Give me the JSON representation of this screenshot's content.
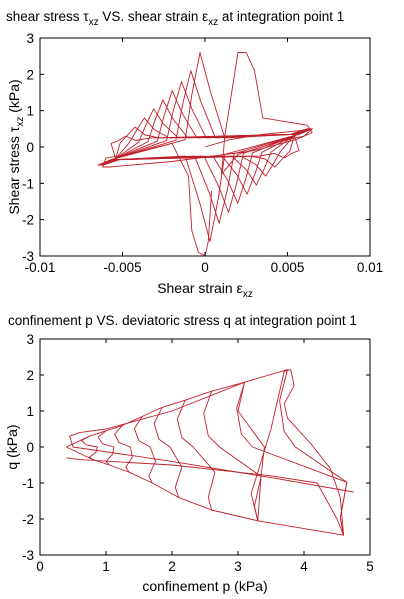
{
  "chart_data": [
    {
      "type": "line",
      "title": "shear stress τxz VS. shear strain εxz at integration point 1",
      "title_parts": {
        "pre": "shear stress τ",
        "sub1": "xz",
        "mid": " VS. shear strain ε",
        "sub2": "xz",
        "post": " at integration point 1"
      },
      "xlabel": "Shear strain εxz",
      "xlabel_parts": {
        "pre": "Shear strain ε",
        "sub": "xz"
      },
      "ylabel": "Shear stress τxz (kPa)",
      "ylabel_parts": {
        "pre": "Shear stress τ",
        "sub": "xz",
        "post": " (kPa)"
      },
      "xlim": [
        -0.01,
        0.01
      ],
      "ylim": [
        -3,
        3
      ],
      "xticks": [
        -0.01,
        -0.005,
        0,
        0.005,
        0.01
      ],
      "xtick_labels": [
        "-0.01",
        "-0.005",
        "0",
        "0.005",
        "0.01"
      ],
      "yticks": [
        -3,
        -2,
        -1,
        0,
        1,
        2,
        3
      ],
      "ytick_labels": [
        "-3",
        "-2",
        "-1",
        "0",
        "1",
        "2",
        "3"
      ],
      "grid": false,
      "line_color": "#c0202a",
      "loop_amplitudes": [
        0.3,
        0.55,
        0.8,
        1.05,
        1.3,
        1.55,
        1.8,
        2.1,
        2.6
      ],
      "loop_strain_limits": [
        0.0062,
        0.0065
      ],
      "series": [
        {
          "values": [
            [
              0,
              0
            ],
            [
              0.0015,
              0.2
            ],
            [
              0.0035,
              0.35
            ],
            [
              0.0058,
              0.45
            ],
            [
              0.0065,
              0.5
            ],
            [
              0.006,
              0.3
            ],
            [
              0.0045,
              0.15
            ],
            [
              0.002,
              -0.2
            ],
            [
              0.001,
              -0.75
            ],
            [
              0.0012,
              0.3
            ],
            [
              0.002,
              2.6
            ],
            [
              0.0025,
              2.6
            ],
            [
              0.0028,
              2.3
            ],
            [
              0.003,
              2.1
            ],
            [
              0.0035,
              0.8
            ],
            [
              0.0062,
              0.6
            ],
            [
              0.0065,
              0.4
            ],
            [
              0.0055,
              0.2
            ],
            [
              0.003,
              -0.1
            ],
            [
              -0.002,
              -0.4
            ],
            [
              -0.0058,
              -0.55
            ],
            [
              -0.0062,
              -0.55
            ],
            [
              -0.006,
              -0.3
            ],
            [
              -0.0045,
              -0.2
            ],
            [
              -0.002,
              0.1
            ],
            [
              -0.001,
              -0.8
            ],
            [
              -0.0008,
              -2.3
            ],
            [
              -0.0006,
              -2.6
            ],
            [
              -0.0004,
              -2.9
            ],
            [
              0.0,
              -3.0
            ],
            [
              0.0002,
              -2.6
            ],
            [
              0.0004,
              -1.2
            ]
          ]
        }
      ]
    },
    {
      "type": "line",
      "title": "confinement p VS. deviatoric stress q at integration point 1",
      "xlabel": "confinement p (kPa)",
      "ylabel": "q (kPa)",
      "xlim": [
        0,
        5
      ],
      "ylim": [
        -3,
        3
      ],
      "xticks": [
        0,
        1,
        2,
        3,
        4,
        5
      ],
      "xtick_labels": [
        "0",
        "1",
        "2",
        "3",
        "4",
        "5"
      ],
      "yticks": [
        -3,
        -2,
        -1,
        0,
        1,
        2,
        3
      ],
      "ytick_labels": [
        "-3",
        "-2",
        "-1",
        "0",
        "1",
        "2",
        "3"
      ],
      "grid": false,
      "line_color": "#c0202a",
      "loop_peaks": [
        {
          "p": 0.75,
          "q": 0.3
        },
        {
          "p": 1.0,
          "q": 0.45
        },
        {
          "p": 1.25,
          "q": 0.6
        },
        {
          "p": 1.55,
          "q": 0.85
        },
        {
          "p": 1.85,
          "q": 1.1
        },
        {
          "p": 2.2,
          "q": 1.3
        },
        {
          "p": 2.6,
          "q": 1.55
        },
        {
          "p": 3.1,
          "q": 1.8
        },
        {
          "p": 3.75,
          "q": 2.15
        }
      ],
      "loop_troughs": [
        {
          "p": 0.8,
          "q": -0.35
        },
        {
          "p": 1.05,
          "q": -0.5
        },
        {
          "p": 1.35,
          "q": -0.7
        },
        {
          "p": 1.7,
          "q": -1.0
        },
        {
          "p": 2.1,
          "q": -1.4
        },
        {
          "p": 2.6,
          "q": -1.75
        },
        {
          "p": 3.3,
          "q": -2.05
        },
        {
          "p": 4.6,
          "q": -2.45
        }
      ],
      "series": [
        {
          "values": [
            [
              0.5,
              0.0
            ],
            [
              0.45,
              0.3
            ],
            [
              0.6,
              0.4
            ],
            [
              1.0,
              0.5
            ],
            [
              2.0,
              1.0
            ],
            [
              3.1,
              1.8
            ],
            [
              3.05,
              1.4
            ],
            [
              3.0,
              1.0
            ],
            [
              3.2,
              0.5
            ],
            [
              3.4,
              0.0
            ],
            [
              3.35,
              -0.8
            ],
            [
              3.3,
              -2.05
            ],
            [
              3.2,
              -1.3
            ],
            [
              3.5,
              0.5
            ],
            [
              3.7,
              2.1
            ],
            [
              3.8,
              2.15
            ],
            [
              3.85,
              1.7
            ],
            [
              3.7,
              1.2
            ],
            [
              3.75,
              0.8
            ],
            [
              4.1,
              0.1
            ],
            [
              4.4,
              -0.6
            ],
            [
              4.55,
              -1.4
            ],
            [
              4.6,
              -2.45
            ],
            [
              4.5,
              -2.0
            ],
            [
              4.2,
              -1.0
            ],
            [
              3.5,
              -0.8
            ],
            [
              2.0,
              -0.5
            ],
            [
              0.6,
              -0.35
            ],
            [
              0.4,
              -0.3
            ]
          ]
        },
        {
          "values": [
            [
              0.5,
              0.0
            ],
            [
              2.0,
              -0.4
            ],
            [
              3.5,
              -0.85
            ],
            [
              4.75,
              -1.25
            ]
          ]
        }
      ]
    }
  ]
}
